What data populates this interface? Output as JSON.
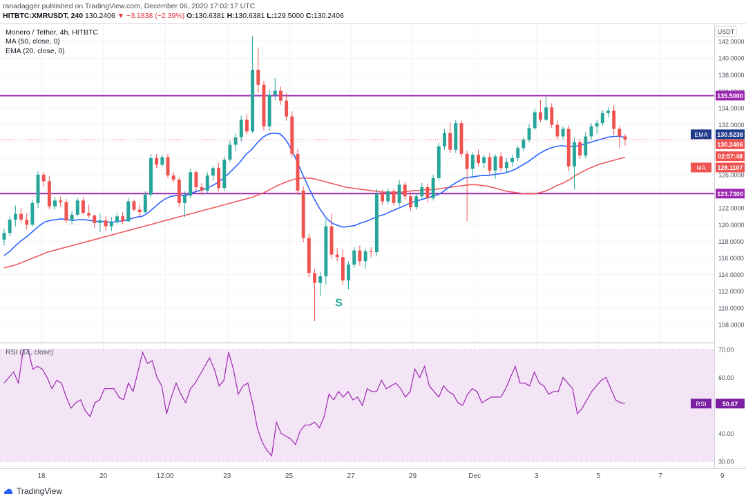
{
  "header": {
    "publisher": "ranadagger published on TradingView.com, December 06, 2020 17:02:17 UTC",
    "symbol": "HITBTC:XMRUSDT, 240",
    "last": "130.2406",
    "change": "▼ −3.1838 (−2.39%)",
    "o_label": "O:",
    "o_value": "130.6381",
    "h_label": "H:",
    "h_value": "130.6381",
    "l_label": "L:",
    "l_value": "129.5000",
    "c_label": "C:",
    "c_value": "130.2406"
  },
  "legend": {
    "pair": "Monero / Tether, 4h, HITBTC",
    "ma": "MA (50, close, 0)",
    "ema": "EMA (20, close, 0)",
    "rsi": "RSI (14, close)"
  },
  "currency_button": "USDT",
  "footer": {
    "brand": "TradingView"
  },
  "colors": {
    "up": "#26a69a",
    "down": "#ef5350",
    "ema": "#2962ff",
    "ma": "#f05a5a",
    "level": "#9c27b0",
    "rsi": "#9c27b0",
    "rsi_band": "#f3e5f5"
  },
  "chart_data": [
    {
      "type": "line",
      "title": "Monero / Tether, 4h, HITBTC",
      "ylim": [
        106,
        144
      ],
      "yticks": [
        "108.0000",
        "110.0000",
        "112.0000",
        "114.0000",
        "116.0000",
        "118.0000",
        "120.0000",
        "122.0000",
        "124.0000",
        "126.0000",
        "128.0000",
        "130.0000",
        "132.0000",
        "134.0000",
        "136.0000",
        "138.0000",
        "140.0000",
        "142.0000"
      ],
      "xticks": [
        "18",
        "20",
        "12:00",
        "23",
        "25",
        "27",
        "29",
        "Dec",
        "3",
        "5",
        "7",
        "9"
      ],
      "levels": [
        {
          "label": "135.5000",
          "value": 135.5
        },
        {
          "label": "123.7300",
          "value": 123.73
        }
      ],
      "tags": [
        {
          "name": "EMA",
          "label": "130.5238",
          "value": 130.5238
        },
        {
          "name": "",
          "label": "130.2406",
          "value": 130.2406
        },
        {
          "name": "",
          "label": "02:57:48",
          "value": 129.3
        },
        {
          "name": "MA",
          "label": "128.1107",
          "value": 128.1107
        }
      ],
      "annotation": {
        "text": "S",
        "x": 0.469,
        "y": 110.2
      },
      "candles_ohlc": [
        [
          118.2,
          119.5,
          117.5,
          119.0
        ],
        [
          119.0,
          121.0,
          118.6,
          120.6
        ],
        [
          120.6,
          122.3,
          119.8,
          121.3
        ],
        [
          121.3,
          122.0,
          120.2,
          120.6
        ],
        [
          120.6,
          121.4,
          119.4,
          120.0
        ],
        [
          120.0,
          123.0,
          119.8,
          122.6
        ],
        [
          122.6,
          126.4,
          122.0,
          126.0
        ],
        [
          126.0,
          126.3,
          124.6,
          125.2
        ],
        [
          125.2,
          125.8,
          121.9,
          122.2
        ],
        [
          122.2,
          123.3,
          121.8,
          122.9
        ],
        [
          122.9,
          123.4,
          122.1,
          122.7
        ],
        [
          122.7,
          123.1,
          120.2,
          120.5
        ],
        [
          120.5,
          121.6,
          120.0,
          121.2
        ],
        [
          121.2,
          123.2,
          121.0,
          122.9
        ],
        [
          122.9,
          123.3,
          121.3,
          121.4
        ],
        [
          121.4,
          122.4,
          120.8,
          121.1
        ],
        [
          121.1,
          121.2,
          119.6,
          120.2
        ],
        [
          120.2,
          121.3,
          119.1,
          120.5
        ],
        [
          120.5,
          121.0,
          119.3,
          119.8
        ],
        [
          119.8,
          120.9,
          119.2,
          120.3
        ],
        [
          120.3,
          121.4,
          120.0,
          121.0
        ],
        [
          121.0,
          121.5,
          120.1,
          120.4
        ],
        [
          120.4,
          123.2,
          120.3,
          122.8
        ],
        [
          122.8,
          123.0,
          121.6,
          121.8
        ],
        [
          121.8,
          122.4,
          121.0,
          121.5
        ],
        [
          121.5,
          124.0,
          121.4,
          123.6
        ],
        [
          123.6,
          128.5,
          123.3,
          128.0
        ],
        [
          128.0,
          128.5,
          126.8,
          127.2
        ],
        [
          127.2,
          128.4,
          126.9,
          128.1
        ],
        [
          128.1,
          128.5,
          125.6,
          125.9
        ],
        [
          125.9,
          126.3,
          125.1,
          125.4
        ],
        [
          125.4,
          125.7,
          122.1,
          122.6
        ],
        [
          122.6,
          124.0,
          120.9,
          123.5
        ],
        [
          123.5,
          126.7,
          123.2,
          126.3
        ],
        [
          126.3,
          126.5,
          124.0,
          124.5
        ],
        [
          124.5,
          125.0,
          123.6,
          124.1
        ],
        [
          124.1,
          126.3,
          123.8,
          125.9
        ],
        [
          125.9,
          127.1,
          125.3,
          126.8
        ],
        [
          126.8,
          127.4,
          124.0,
          124.4
        ],
        [
          124.4,
          128.2,
          124.1,
          127.8
        ],
        [
          127.8,
          130.1,
          127.5,
          129.6
        ],
        [
          129.6,
          130.9,
          128.8,
          130.5
        ],
        [
          130.5,
          133.1,
          130.0,
          132.6
        ],
        [
          132.6,
          133.3,
          130.8,
          131.2
        ],
        [
          131.2,
          142.7,
          131.0,
          138.6
        ],
        [
          138.6,
          141.3,
          135.9,
          136.8
        ],
        [
          136.8,
          137.3,
          131.3,
          131.8
        ],
        [
          131.8,
          136.2,
          131.3,
          135.6
        ],
        [
          135.6,
          137.6,
          135.0,
          136.1
        ],
        [
          136.1,
          136.6,
          134.4,
          134.9
        ],
        [
          134.9,
          135.8,
          132.5,
          133.0
        ],
        [
          133.0,
          133.6,
          128.1,
          128.5
        ],
        [
          128.5,
          129.1,
          123.6,
          124.1
        ],
        [
          124.1,
          124.6,
          117.9,
          118.4
        ],
        [
          118.4,
          118.9,
          113.7,
          114.2
        ],
        [
          114.2,
          114.7,
          108.4,
          113.0
        ],
        [
          113.0,
          114.3,
          111.4,
          113.8
        ],
        [
          113.8,
          120.6,
          112.8,
          119.8
        ],
        [
          119.8,
          121.3,
          115.9,
          116.4
        ],
        [
          116.4,
          117.2,
          115.6,
          116.1
        ],
        [
          116.1,
          117.0,
          112.8,
          113.3
        ],
        [
          113.3,
          115.6,
          112.2,
          115.2
        ],
        [
          115.2,
          117.3,
          114.8,
          116.9
        ],
        [
          116.9,
          117.5,
          115.1,
          115.6
        ],
        [
          115.6,
          117.1,
          114.7,
          116.8
        ],
        [
          116.8,
          117.3,
          116.1,
          116.7
        ],
        [
          116.7,
          124.3,
          116.3,
          123.7
        ],
        [
          123.7,
          124.2,
          122.4,
          122.8
        ],
        [
          122.8,
          124.4,
          122.5,
          124.0
        ],
        [
          124.0,
          124.3,
          122.3,
          122.6
        ],
        [
          122.6,
          125.4,
          122.2,
          124.8
        ],
        [
          124.8,
          125.1,
          123.0,
          123.4
        ],
        [
          123.4,
          123.9,
          121.7,
          122.1
        ],
        [
          122.1,
          123.7,
          121.8,
          123.4
        ],
        [
          123.4,
          125.0,
          123.1,
          124.5
        ],
        [
          124.5,
          124.9,
          122.7,
          123.2
        ],
        [
          123.2,
          126.0,
          122.9,
          125.6
        ],
        [
          125.6,
          129.8,
          125.3,
          129.4
        ],
        [
          129.4,
          131.5,
          129.0,
          131.0
        ],
        [
          131.0,
          132.3,
          128.6,
          129.0
        ],
        [
          129.0,
          132.6,
          128.6,
          132.2
        ],
        [
          132.2,
          132.5,
          128.1,
          128.5
        ],
        [
          128.5,
          128.9,
          120.4,
          126.7
        ],
        [
          126.7,
          128.7,
          125.6,
          128.4
        ],
        [
          128.4,
          129.0,
          127.0,
          127.4
        ],
        [
          127.4,
          128.4,
          126.8,
          128.1
        ],
        [
          128.1,
          128.6,
          126.0,
          126.5
        ],
        [
          126.5,
          128.5,
          125.5,
          128.2
        ],
        [
          128.2,
          128.7,
          126.4,
          126.8
        ],
        [
          126.8,
          128.0,
          126.3,
          127.5
        ],
        [
          127.5,
          128.4,
          127.0,
          128.0
        ],
        [
          128.0,
          129.5,
          127.6,
          129.2
        ],
        [
          129.2,
          130.5,
          128.8,
          130.2
        ],
        [
          130.2,
          132.1,
          129.9,
          131.6
        ],
        [
          131.6,
          133.9,
          131.4,
          133.5
        ],
        [
          133.5,
          135.0,
          132.3,
          132.6
        ],
        [
          132.6,
          135.4,
          132.4,
          134.1
        ],
        [
          134.1,
          134.6,
          131.6,
          132.0
        ],
        [
          132.0,
          132.5,
          130.2,
          130.6
        ],
        [
          130.6,
          131.8,
          130.2,
          131.5
        ],
        [
          131.5,
          131.9,
          126.4,
          127.0
        ],
        [
          127.0,
          130.5,
          124.2,
          129.9
        ],
        [
          129.9,
          130.2,
          127.9,
          128.3
        ],
        [
          128.3,
          131.1,
          128.0,
          130.6
        ],
        [
          130.6,
          132.2,
          130.2,
          131.8
        ],
        [
          131.8,
          132.6,
          130.9,
          132.2
        ],
        [
          132.2,
          133.8,
          131.9,
          133.4
        ],
        [
          133.4,
          134.1,
          132.9,
          133.7
        ],
        [
          133.7,
          134.4,
          130.8,
          131.5
        ],
        [
          131.5,
          131.8,
          129.2,
          130.6
        ],
        [
          130.6,
          130.9,
          129.5,
          130.2
        ]
      ],
      "series": [
        {
          "name": "EMA",
          "values": [
            116.3,
            116.8,
            117.5,
            118.1,
            118.6,
            119.2,
            119.8,
            120.3,
            120.5,
            120.6,
            120.7,
            120.6,
            120.5,
            120.6,
            120.6,
            120.5,
            120.4,
            120.4,
            120.3,
            120.3,
            120.4,
            120.5,
            120.7,
            120.9,
            121.0,
            121.4,
            122.0,
            122.6,
            123.1,
            123.4,
            123.5,
            123.5,
            123.6,
            123.9,
            124.1,
            124.3,
            124.6,
            125.0,
            125.5,
            126.1,
            126.8,
            127.5,
            128.4,
            129.0,
            129.8,
            130.5,
            130.9,
            131.0,
            130.9,
            130.2,
            129.0,
            127.5,
            125.9,
            124.4,
            123.0,
            121.8,
            120.8,
            120.2,
            119.9,
            119.7,
            119.8,
            119.9,
            120.2,
            120.4,
            120.7,
            121.0,
            121.2,
            121.5,
            121.8,
            122.1,
            122.4,
            122.7,
            122.9,
            123.1,
            123.3,
            123.5,
            123.8,
            124.3,
            124.8,
            125.2,
            125.6,
            125.7,
            125.8,
            125.9,
            125.9,
            126.0,
            126.1,
            126.2,
            126.4,
            126.7,
            127.1,
            127.5,
            128.0,
            128.5,
            128.9,
            129.2,
            129.4,
            129.5,
            129.4,
            129.4,
            129.5,
            129.7,
            129.9,
            130.1,
            130.3,
            130.5,
            130.6,
            130.6,
            130.5
          ]
        },
        {
          "name": "MA",
          "values": [
            114.8,
            115.0,
            115.2,
            115.5,
            115.8,
            116.1,
            116.4,
            116.7,
            116.9,
            117.1,
            117.3,
            117.5,
            117.7,
            117.9,
            118.1,
            118.3,
            118.5,
            118.7,
            118.9,
            119.1,
            119.3,
            119.5,
            119.7,
            119.9,
            120.1,
            120.3,
            120.5,
            120.7,
            120.9,
            121.1,
            121.3,
            121.5,
            121.7,
            121.9,
            122.1,
            122.3,
            122.5,
            122.7,
            122.9,
            123.1,
            123.3,
            123.6,
            123.9,
            124.3,
            124.7,
            125.0,
            125.3,
            125.5,
            125.6,
            125.6,
            125.5,
            125.3,
            125.1,
            124.9,
            124.7,
            124.5,
            124.4,
            124.3,
            124.2,
            124.1,
            124.0,
            123.9,
            123.9,
            123.9,
            123.9,
            124.0,
            124.1,
            124.1,
            124.2,
            124.2,
            124.3,
            124.4,
            124.5,
            124.6,
            124.7,
            124.8,
            124.8,
            124.7,
            124.6,
            124.4,
            124.2,
            124.0,
            123.9,
            123.8,
            123.7,
            123.7,
            123.8,
            124.0,
            124.3,
            124.7,
            125.0,
            125.4,
            125.9,
            126.3,
            126.7,
            127.0,
            127.3,
            127.5,
            127.7,
            127.9,
            128.1
          ]
        }
      ]
    },
    {
      "type": "line",
      "title": "RSI (14, close)",
      "ylim": [
        28,
        72
      ],
      "yticks": [
        "30.00",
        "40.00",
        "50.00",
        "60.00",
        "70.00"
      ],
      "band": [
        30,
        70
      ],
      "tag": {
        "name": "RSI",
        "label": "50.67",
        "value": 50.67
      },
      "series": [
        {
          "name": "RSI",
          "values": [
            58,
            60,
            62,
            58,
            70,
            70,
            63,
            64,
            63,
            60,
            56,
            59,
            58,
            53,
            49,
            51,
            52,
            48,
            46,
            51,
            52,
            56,
            56,
            56,
            53,
            52,
            58,
            55,
            62,
            69,
            65,
            66,
            60,
            57,
            47,
            53,
            58,
            54,
            51,
            56,
            58,
            61,
            64,
            67,
            63,
            57,
            59,
            69,
            63,
            54,
            57,
            58,
            51,
            42,
            37,
            34,
            32,
            44,
            40,
            39,
            38,
            36,
            41,
            43,
            43,
            44,
            42,
            46,
            54,
            52,
            55,
            53,
            55,
            52,
            53,
            50,
            56,
            55,
            55,
            59,
            56,
            57,
            58,
            56,
            53,
            55,
            63,
            60,
            64,
            57,
            55,
            53,
            57,
            55,
            54,
            51,
            50,
            54,
            56,
            55,
            51,
            52,
            53,
            53,
            53,
            56,
            60,
            64,
            58,
            58,
            57,
            62,
            58,
            57,
            54,
            55,
            55,
            60,
            58,
            56,
            47,
            49,
            52,
            55,
            57,
            59,
            60,
            56,
            52,
            51,
            50.7
          ]
        }
      ]
    }
  ]
}
